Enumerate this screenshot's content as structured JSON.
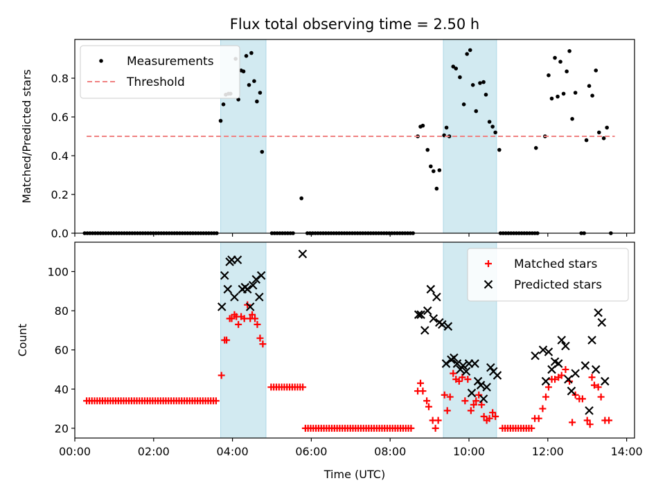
{
  "title": "Flux total observing time = 2.50 h",
  "chart_data": [
    {
      "type": "scatter",
      "ylabel": "Matched/Predicted stars",
      "xlim": [
        0.0,
        14.2
      ],
      "ylim": [
        0,
        1.0
      ],
      "yticks": [
        0.0,
        0.2,
        0.4,
        0.6,
        0.8
      ],
      "ytick_labels": [
        "0.0",
        "0.2",
        "0.4",
        "0.6",
        "0.8"
      ],
      "grid": false,
      "legend_placement": "top-left",
      "shaded_intervals": [
        [
          3.7,
          4.85
        ],
        [
          9.35,
          10.7
        ]
      ],
      "shade_color": "#add8e6",
      "series": [
        {
          "name": "Measurements",
          "kind": "scatter",
          "marker": "dot",
          "color": "#000000",
          "zero_points": {
            "from": 0.25,
            "to": 3.6,
            "step": 0.067,
            "y": 0
          },
          "points": [
            [
              3.7,
              0.58
            ],
            [
              3.77,
              0.665
            ],
            [
              3.83,
              0.715
            ],
            [
              3.9,
              0.72
            ],
            [
              3.95,
              0.72
            ],
            [
              4.08,
              0.9
            ],
            [
              4.15,
              0.69
            ],
            [
              4.22,
              0.84
            ],
            [
              4.28,
              0.835
            ],
            [
              4.35,
              0.915
            ],
            [
              4.42,
              0.765
            ],
            [
              4.48,
              0.93
            ],
            [
              4.55,
              0.785
            ],
            [
              4.62,
              0.68
            ],
            [
              4.7,
              0.725
            ],
            [
              4.75,
              0.42
            ],
            [
              5.75,
              0.18
            ],
            [
              8.7,
              0.5
            ],
            [
              8.77,
              0.55
            ],
            [
              8.83,
              0.555
            ],
            [
              8.95,
              0.43
            ],
            [
              9.03,
              0.345
            ],
            [
              9.1,
              0.32
            ],
            [
              9.18,
              0.23
            ],
            [
              9.25,
              0.325
            ],
            [
              9.37,
              0.505
            ],
            [
              9.43,
              0.545
            ],
            [
              9.5,
              0.5
            ],
            [
              9.6,
              0.86
            ],
            [
              9.67,
              0.85
            ],
            [
              9.77,
              0.805
            ],
            [
              9.87,
              0.665
            ],
            [
              9.95,
              0.925
            ],
            [
              10.03,
              0.945
            ],
            [
              10.1,
              0.765
            ],
            [
              10.18,
              0.63
            ],
            [
              10.28,
              0.775
            ],
            [
              10.37,
              0.78
            ],
            [
              10.43,
              0.715
            ],
            [
              10.52,
              0.575
            ],
            [
              10.6,
              0.55
            ],
            [
              10.67,
              0.52
            ],
            [
              10.77,
              0.43
            ],
            [
              11.7,
              0.44
            ],
            [
              11.93,
              0.5
            ],
            [
              12.02,
              0.815
            ],
            [
              12.1,
              0.695
            ],
            [
              12.18,
              0.905
            ],
            [
              12.25,
              0.705
            ],
            [
              12.32,
              0.885
            ],
            [
              12.4,
              0.72
            ],
            [
              12.48,
              0.835
            ],
            [
              12.55,
              0.94
            ],
            [
              12.62,
              0.59
            ],
            [
              12.7,
              0.725
            ],
            [
              12.85,
              0
            ],
            [
              12.92,
              0
            ],
            [
              12.98,
              0.48
            ],
            [
              13.05,
              0.76
            ],
            [
              13.13,
              0.71
            ],
            [
              13.22,
              0.84
            ],
            [
              13.3,
              0.52
            ],
            [
              13.42,
              0.49
            ],
            [
              13.5,
              0.545
            ],
            [
              13.6,
              0
            ]
          ],
          "zero_ranges": [
            [
              5.0,
              5.55
            ],
            [
              5.9,
              8.6
            ],
            [
              10.8,
              11.75
            ]
          ]
        },
        {
          "name": "Threshold",
          "kind": "line",
          "style": "dashed",
          "color": "#f08080",
          "x": [
            0.3,
            13.7
          ],
          "y": [
            0.5,
            0.5
          ]
        }
      ]
    },
    {
      "type": "scatter",
      "xlabel": "Time (UTC)",
      "ylabel": "Count",
      "xlim": [
        0.0,
        14.2
      ],
      "ylim": [
        15,
        115
      ],
      "xticks": [
        0,
        2,
        4,
        6,
        8,
        10,
        12,
        14
      ],
      "xtick_labels": [
        "00:00",
        "02:00",
        "04:00",
        "06:00",
        "08:00",
        "10:00",
        "12:00",
        "14:00"
      ],
      "yticks": [
        20,
        40,
        60,
        80,
        100
      ],
      "ytick_labels": [
        "20",
        "40",
        "60",
        "80",
        "100"
      ],
      "grid": false,
      "legend_placement": "top-right",
      "shaded_intervals": [
        [
          3.7,
          4.85
        ],
        [
          9.35,
          10.7
        ]
      ],
      "shade_color": "#add8e6",
      "series": [
        {
          "name": "Matched stars",
          "kind": "scatter",
          "marker": "plus",
          "color": "#ff0000",
          "flat_runs": [
            {
              "from": 0.3,
              "to": 3.6,
              "step": 0.067,
              "y": 34
            },
            {
              "from": 4.98,
              "to": 5.85,
              "step": 0.067,
              "y": 41
            },
            {
              "from": 5.85,
              "to": 8.55,
              "step": 0.067,
              "y": 20
            },
            {
              "from": 10.85,
              "to": 11.6,
              "step": 0.067,
              "y": 20
            }
          ],
          "points": [
            [
              3.72,
              47
            ],
            [
              3.8,
              65
            ],
            [
              3.85,
              65
            ],
            [
              3.93,
              76
            ],
            [
              3.98,
              76
            ],
            [
              4.05,
              78
            ],
            [
              4.1,
              77
            ],
            [
              4.15,
              73
            ],
            [
              4.22,
              77
            ],
            [
              4.3,
              76
            ],
            [
              4.38,
              83
            ],
            [
              4.45,
              76
            ],
            [
              4.5,
              78
            ],
            [
              4.57,
              76
            ],
            [
              4.63,
              73
            ],
            [
              4.7,
              66
            ],
            [
              4.77,
              63
            ],
            [
              8.7,
              39
            ],
            [
              8.77,
              43
            ],
            [
              8.83,
              39
            ],
            [
              8.93,
              34
            ],
            [
              8.98,
              31
            ],
            [
              9.08,
              24
            ],
            [
              9.15,
              20
            ],
            [
              9.22,
              24
            ],
            [
              9.38,
              37
            ],
            [
              9.45,
              29
            ],
            [
              9.52,
              36
            ],
            [
              9.6,
              48
            ],
            [
              9.67,
              45
            ],
            [
              9.75,
              44
            ],
            [
              9.83,
              46
            ],
            [
              9.9,
              34
            ],
            [
              9.97,
              45
            ],
            [
              10.05,
              29
            ],
            [
              10.12,
              32
            ],
            [
              10.18,
              34
            ],
            [
              10.25,
              37
            ],
            [
              10.32,
              32
            ],
            [
              10.38,
              26
            ],
            [
              10.45,
              24
            ],
            [
              10.52,
              25
            ],
            [
              10.6,
              28
            ],
            [
              10.67,
              26
            ],
            [
              11.67,
              25
            ],
            [
              11.77,
              25
            ],
            [
              11.87,
              30
            ],
            [
              11.95,
              36
            ],
            [
              12.02,
              41
            ],
            [
              12.1,
              45
            ],
            [
              12.18,
              45
            ],
            [
              12.27,
              46
            ],
            [
              12.35,
              47
            ],
            [
              12.45,
              50
            ],
            [
              12.55,
              44
            ],
            [
              12.62,
              23
            ],
            [
              12.7,
              37
            ],
            [
              12.8,
              35
            ],
            [
              12.88,
              35
            ],
            [
              13.0,
              24
            ],
            [
              13.07,
              22
            ],
            [
              13.12,
              46
            ],
            [
              13.18,
              42
            ],
            [
              13.28,
              41
            ],
            [
              13.35,
              36
            ],
            [
              13.45,
              24
            ],
            [
              13.55,
              24
            ]
          ]
        },
        {
          "name": "Predicted stars",
          "kind": "scatter",
          "marker": "x",
          "color": "#000000",
          "points": [
            [
              3.73,
              82
            ],
            [
              3.8,
              98
            ],
            [
              3.88,
              91
            ],
            [
              3.93,
              105
            ],
            [
              3.98,
              106
            ],
            [
              4.05,
              87
            ],
            [
              4.13,
              106
            ],
            [
              4.25,
              91
            ],
            [
              4.32,
              92
            ],
            [
              4.38,
              91
            ],
            [
              4.45,
              82
            ],
            [
              4.52,
              93
            ],
            [
              4.6,
              96
            ],
            [
              4.68,
              87
            ],
            [
              4.73,
              98
            ],
            [
              5.78,
              109
            ],
            [
              8.72,
              78
            ],
            [
              8.78,
              78
            ],
            [
              8.88,
              70
            ],
            [
              8.95,
              80
            ],
            [
              9.03,
              91
            ],
            [
              9.1,
              76
            ],
            [
              9.18,
              87
            ],
            [
              9.25,
              74
            ],
            [
              9.32,
              73
            ],
            [
              9.42,
              53
            ],
            [
              9.47,
              72
            ],
            [
              9.55,
              55
            ],
            [
              9.62,
              56
            ],
            [
              9.7,
              53
            ],
            [
              9.78,
              50
            ],
            [
              9.85,
              52
            ],
            [
              9.93,
              49
            ],
            [
              10.0,
              53
            ],
            [
              10.07,
              38
            ],
            [
              10.15,
              53
            ],
            [
              10.23,
              44
            ],
            [
              10.3,
              42
            ],
            [
              10.37,
              35
            ],
            [
              10.45,
              41
            ],
            [
              10.55,
              51
            ],
            [
              10.62,
              49
            ],
            [
              10.72,
              47
            ],
            [
              11.68,
              57
            ],
            [
              11.88,
              60
            ],
            [
              11.95,
              44
            ],
            [
              12.02,
              59
            ],
            [
              12.1,
              50
            ],
            [
              12.18,
              54
            ],
            [
              12.27,
              53
            ],
            [
              12.35,
              65
            ],
            [
              12.45,
              62
            ],
            [
              12.52,
              45
            ],
            [
              12.6,
              39
            ],
            [
              12.7,
              48
            ],
            [
              12.95,
              52
            ],
            [
              13.05,
              29
            ],
            [
              13.12,
              65
            ],
            [
              13.22,
              50
            ],
            [
              13.28,
              79
            ],
            [
              13.37,
              74
            ],
            [
              13.45,
              44
            ]
          ]
        }
      ]
    }
  ]
}
